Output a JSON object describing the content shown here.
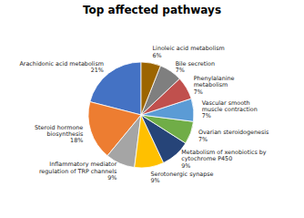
{
  "chart_data": {
    "type": "pie",
    "title": "Top affected pathways",
    "categories": [
      "Arachidonic acid metabolism",
      "Steroid hormone\nbiosynthesis",
      "Inflammatory mediator\nregulation of TRP channels",
      "Serotonergic synapse",
      "Metabolism of xenobiotics by\ncytochrome P450",
      "Ovarian steroidogenesis",
      "Vascular smooth\nmuscle contraction",
      "Phenylalanine\nmetabolism",
      "Bile secretion",
      "Linoleic acid metabolism"
    ],
    "values": [
      21,
      18,
      9,
      9,
      9,
      7,
      7,
      7,
      7,
      6
    ],
    "value_labels": [
      "21%",
      "18%",
      "9%",
      "9%",
      "9%",
      "7%",
      "7%",
      "7%",
      "7%",
      "6%"
    ],
    "data_labels": true,
    "colors": [
      "#4472C4",
      "#ED7D31",
      "#A5A5A5",
      "#FFC000",
      "#264478",
      "#70AD47",
      "#5B9BD5",
      "#C0504D",
      "#7F7F7F",
      "#9C6500"
    ]
  }
}
